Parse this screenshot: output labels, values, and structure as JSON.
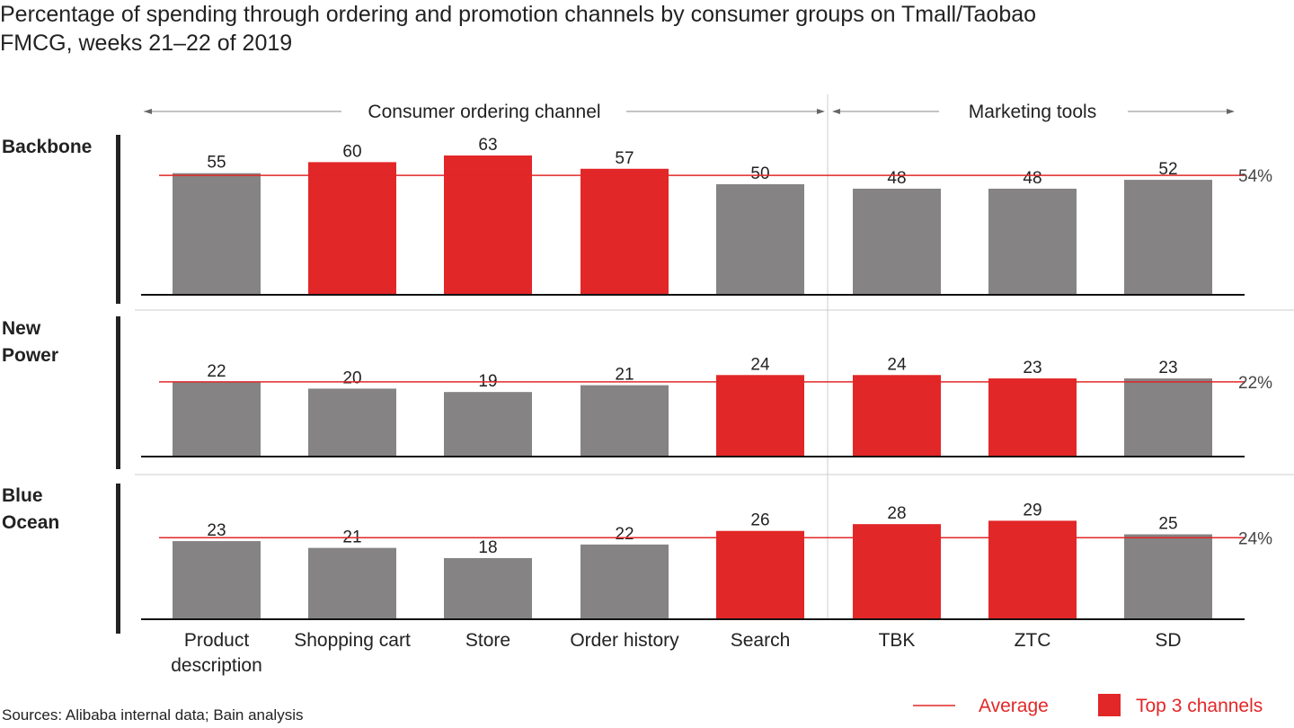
{
  "title_line1": "Percentage of spending through ordering and promotion channels by consumer groups on Tmall/Taobao",
  "title_line2": "FMCG, weeks 21–22 of 2019",
  "source": "Sources: Alibaba internal data; Bain analysis",
  "colors": {
    "top3": "#e22728",
    "other": "#858383",
    "average": "#e22728"
  },
  "chart_data": {
    "type": "bar",
    "group_headers": [
      {
        "label": "Consumer ordering channel",
        "categories": [
          "Product description",
          "Shopping cart",
          "Store",
          "Order history",
          "Search"
        ]
      },
      {
        "label": "Marketing tools",
        "categories": [
          "TBK",
          "ZTC",
          "SD"
        ]
      }
    ],
    "categories": [
      "Product description",
      "Shopping cart",
      "Store",
      "Order history",
      "Search",
      "TBK",
      "ZTC",
      "SD"
    ],
    "series": [
      {
        "name": "Backbone",
        "values": [
          55,
          60,
          63,
          57,
          50,
          48,
          48,
          52
        ],
        "average": 54,
        "average_label": "54%",
        "top3": [
          1,
          2,
          3
        ]
      },
      {
        "name": "New Power",
        "values": [
          22,
          20,
          19,
          21,
          24,
          24,
          23,
          23
        ],
        "average": 22,
        "average_label": "22%",
        "top3": [
          4,
          5,
          6
        ]
      },
      {
        "name": "Blue Ocean",
        "values": [
          23,
          21,
          18,
          22,
          26,
          28,
          29,
          25
        ],
        "average": 24,
        "average_label": "24%",
        "top3": [
          4,
          5,
          6
        ]
      }
    ],
    "legend": {
      "average": "Average",
      "top3": "Top 3 channels",
      "position": "bottom-right"
    }
  }
}
